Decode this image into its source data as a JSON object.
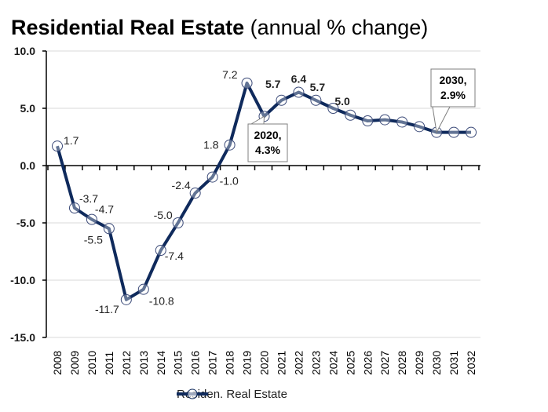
{
  "title": {
    "main": "Residential Real Estate",
    "sub": "(annual % change)"
  },
  "chart_data": {
    "type": "line",
    "title": "Residential Real Estate (annual % change)",
    "xlabel": "",
    "ylabel": "",
    "ylim": [
      -15,
      10
    ],
    "yticks": [
      10,
      5,
      0,
      -5,
      -10,
      -15
    ],
    "ytick_labels": [
      "10.0",
      "5.0",
      "0.0",
      "-5.0",
      "-10.0",
      "-15.0"
    ],
    "grid": true,
    "legend_position": "bottom-center",
    "categories": [
      "2008",
      "2009",
      "2010",
      "2011",
      "2012",
      "2013",
      "2014",
      "2015",
      "2016",
      "2017",
      "2018",
      "2019",
      "2020",
      "2021",
      "2022",
      "2023",
      "2024",
      "2025",
      "2026",
      "2027",
      "2028",
      "2029",
      "2030",
      "2031",
      "2032"
    ],
    "series": [
      {
        "name": "Residen. Real Estate",
        "color": "#0f2a5c",
        "values": [
          1.7,
          -3.7,
          -4.7,
          -5.5,
          -11.7,
          -10.8,
          -7.4,
          -5.0,
          -2.4,
          -1.0,
          1.8,
          7.2,
          4.3,
          5.7,
          6.4,
          5.7,
          5.0,
          4.4,
          3.9,
          4.0,
          3.8,
          3.4,
          2.9,
          2.9,
          2.9
        ]
      }
    ],
    "data_labels": [
      {
        "index": 0,
        "text": "1.7",
        "bold": false
      },
      {
        "index": 1,
        "text": "-3.7",
        "bold": false
      },
      {
        "index": 2,
        "text": "-4.7",
        "bold": false
      },
      {
        "index": 3,
        "text": "-5.5",
        "bold": false
      },
      {
        "index": 4,
        "text": "-11.7",
        "bold": false
      },
      {
        "index": 5,
        "text": "-10.8",
        "bold": false
      },
      {
        "index": 6,
        "text": "-7.4",
        "bold": false
      },
      {
        "index": 7,
        "text": "-5.0",
        "bold": false
      },
      {
        "index": 8,
        "text": "-2.4",
        "bold": false
      },
      {
        "index": 9,
        "text": "-1.0",
        "bold": false
      },
      {
        "index": 10,
        "text": "1.8",
        "bold": false
      },
      {
        "index": 11,
        "text": "7.2",
        "bold": false
      },
      {
        "index": 13,
        "text": "5.7",
        "bold": true
      },
      {
        "index": 14,
        "text": "6.4",
        "bold": true
      },
      {
        "index": 15,
        "text": "5.7",
        "bold": true
      },
      {
        "index": 16,
        "text": "5.0",
        "bold": true
      }
    ],
    "annotations": [
      {
        "index": 12,
        "lines": [
          "2020,",
          "4.3%"
        ]
      },
      {
        "index": 22,
        "lines": [
          "2030,",
          "2.9%"
        ]
      }
    ]
  },
  "legend": {
    "label": "Residen. Real Estate"
  }
}
